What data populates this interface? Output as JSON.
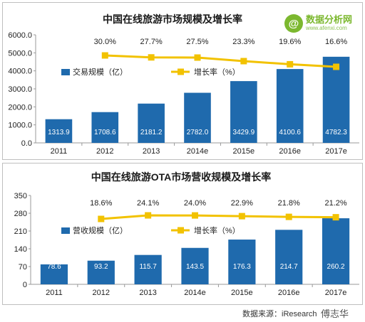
{
  "logo": {
    "name": "数据分析网",
    "url": "www.afenxi.com",
    "mark": "@"
  },
  "source_text": "数据来源：iResearch",
  "watermark": "傅志华",
  "chart_data": [
    {
      "type": "bar",
      "title": "中国在线旅游市场规模及增长率",
      "categories": [
        "2011",
        "2012",
        "2013",
        "2014e",
        "2015e",
        "2016e",
        "2017e"
      ],
      "series": [
        {
          "name": "交易规模（亿）",
          "type": "bar",
          "values": [
            1313.9,
            1708.6,
            2181.2,
            2782.0,
            3429.9,
            4100.6,
            4782.3
          ]
        },
        {
          "name": "增长率（%）",
          "type": "line",
          "values": [
            null,
            30.0,
            27.7,
            27.5,
            23.3,
            19.6,
            16.6
          ]
        }
      ],
      "bar_labels": [
        "1313.9",
        "1708.6",
        "2181.2",
        "2782.0",
        "3429.9",
        "4100.6",
        "4782.3"
      ],
      "line_labels": [
        "",
        "30.0%",
        "27.7%",
        "27.5%",
        "23.3%",
        "19.6%",
        "16.6%"
      ],
      "ylim": [
        0,
        6000
      ],
      "yticks": [
        "0.0",
        "1000.0",
        "2000.0",
        "3000.0",
        "4000.0",
        "5000.0",
        "6000.0"
      ],
      "legend": "top-left",
      "grid": false,
      "colors": {
        "bar": "#1f6aad",
        "line": "#f2c200",
        "title": "#1a1a1a"
      }
    },
    {
      "type": "bar",
      "title": "中国在线旅游OTA市场营收规模及增长率",
      "categories": [
        "2011",
        "2012",
        "2013",
        "2014e",
        "2015e",
        "2016e",
        "2017e"
      ],
      "series": [
        {
          "name": "营收规模（亿）",
          "type": "bar",
          "values": [
            78.6,
            93.2,
            115.7,
            143.5,
            176.3,
            214.7,
            260.2
          ]
        },
        {
          "name": "增长率（%）",
          "type": "line",
          "values": [
            null,
            18.6,
            24.1,
            24.0,
            22.9,
            21.8,
            21.2
          ]
        }
      ],
      "bar_labels": [
        "78.6",
        "93.2",
        "115.7",
        "143.5",
        "176.3",
        "214.7",
        "260.2"
      ],
      "line_labels": [
        "",
        "18.6%",
        "24.1%",
        "24.0%",
        "22.9%",
        "21.8%",
        "21.2%"
      ],
      "ylim": [
        0,
        350
      ],
      "yticks": [
        "0",
        "70",
        "140",
        "210",
        "280",
        "350"
      ],
      "legend": "top-left",
      "grid": false,
      "colors": {
        "bar": "#1f6aad",
        "line": "#f2c200",
        "title": "#1a1a1a"
      }
    }
  ]
}
